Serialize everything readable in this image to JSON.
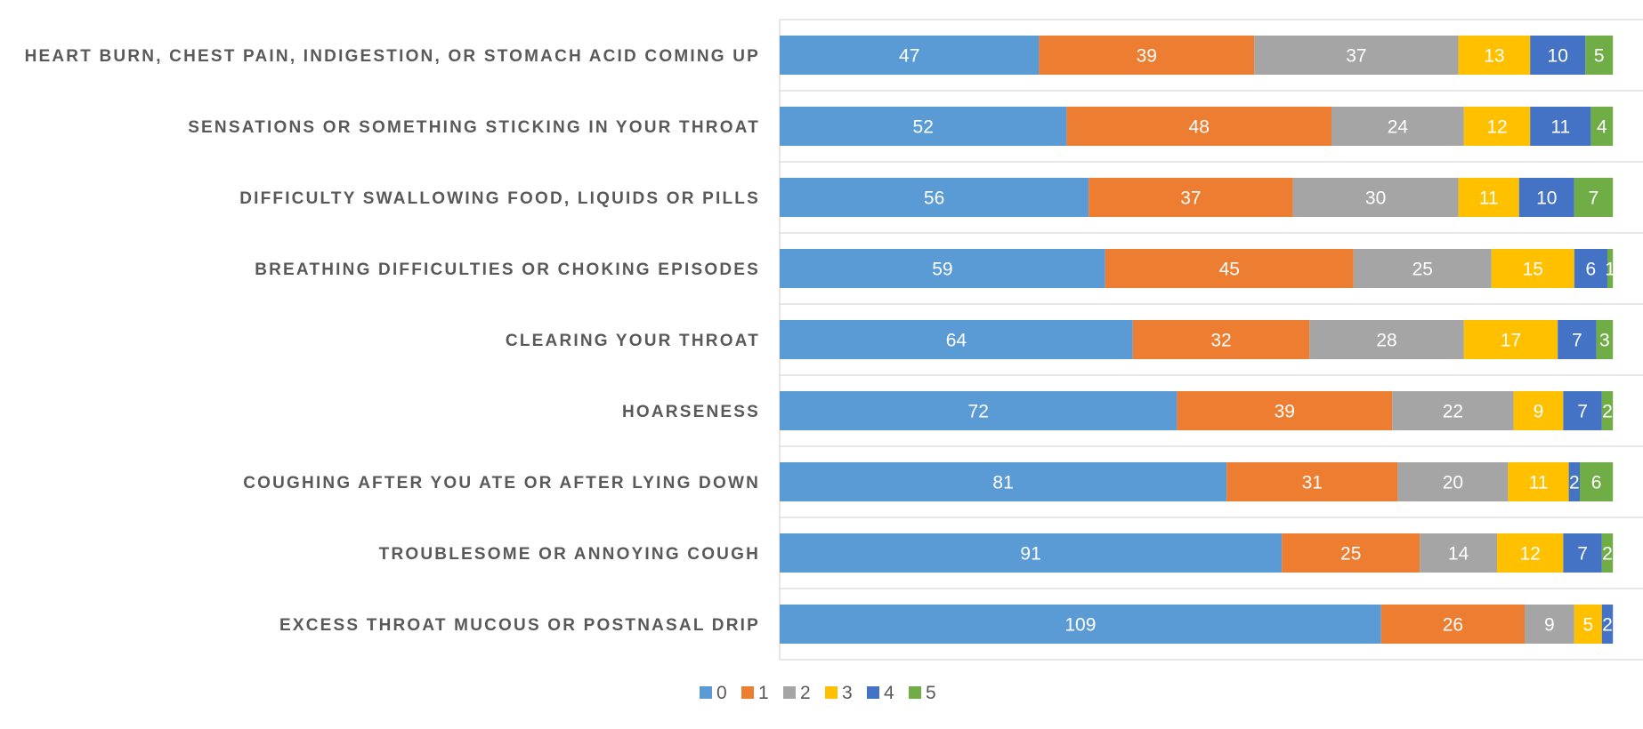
{
  "chart_data": {
    "type": "bar",
    "orientation": "horizontal",
    "stacked": true,
    "categories": [
      "HEART BURN, CHEST PAIN, INDIGESTION, OR STOMACH ACID COMING UP",
      "SENSATIONS OR SOMETHING STICKING IN YOUR THROAT",
      "DIFFICULTY SWALLOWING FOOD, LIQUIDS OR PILLS",
      "BREATHING DIFFICULTIES OR CHOKING EPISODES",
      "CLEARING YOUR THROAT",
      "HOARSENESS",
      "COUGHING AFTER YOU ATE OR AFTER LYING DOWN",
      "TROUBLESOME OR ANNOYING COUGH",
      "EXCESS THROAT MUCOUS OR POSTNASAL DRIP"
    ],
    "series": [
      {
        "name": "0",
        "color": "#5B9BD5",
        "values": [
          47,
          52,
          56,
          59,
          64,
          72,
          81,
          91,
          109
        ]
      },
      {
        "name": "1",
        "color": "#ED7D31",
        "values": [
          39,
          48,
          37,
          45,
          32,
          39,
          31,
          25,
          26
        ]
      },
      {
        "name": "2",
        "color": "#A5A5A5",
        "values": [
          37,
          24,
          30,
          25,
          28,
          22,
          20,
          14,
          9
        ]
      },
      {
        "name": "3",
        "color": "#FFC000",
        "values": [
          13,
          12,
          11,
          15,
          17,
          9,
          11,
          12,
          5
        ]
      },
      {
        "name": "4",
        "color": "#4472C4",
        "values": [
          10,
          11,
          10,
          6,
          7,
          7,
          2,
          7,
          2
        ]
      },
      {
        "name": "5",
        "color": "#70AD47",
        "values": [
          5,
          4,
          7,
          1,
          3,
          2,
          6,
          2,
          0
        ]
      }
    ],
    "xlim": [
      0,
      160
    ],
    "grid": true,
    "legend_position": "bottom"
  }
}
